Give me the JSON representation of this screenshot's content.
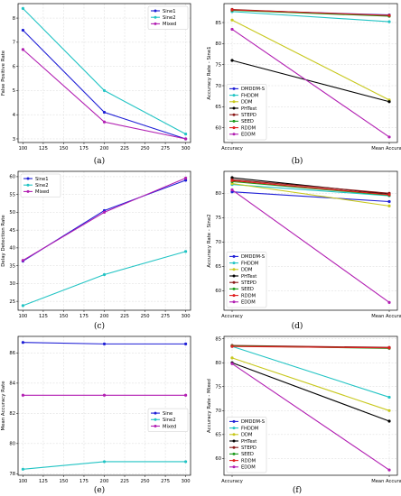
{
  "figure": {
    "panel_labels": [
      "(a)",
      "(b)",
      "(c)",
      "(d)",
      "(e)",
      "(f)"
    ]
  },
  "chart_data": [
    {
      "panel": "(a)",
      "type": "line",
      "xlabel": "",
      "ylabel": "False Positive Rate",
      "x": [
        100,
        200,
        300
      ],
      "xticks": [
        "100",
        "125",
        "150",
        "175",
        "200",
        "225",
        "250",
        "275",
        "300"
      ],
      "yticks": [
        "3",
        "4",
        "5",
        "6",
        "7",
        "8"
      ],
      "xlim": [
        94,
        306
      ],
      "ylim": [
        2.85,
        8.6
      ],
      "grid": true,
      "legend": "top-right",
      "series": [
        {
          "name": "Sine1",
          "color": "#1f1fd6",
          "values": [
            7.5,
            4.1,
            3.0
          ]
        },
        {
          "name": "Sine2",
          "color": "#22c4c4",
          "values": [
            8.4,
            5.0,
            3.2
          ]
        },
        {
          "name": "Mixed",
          "color": "#b21fb2",
          "values": [
            6.7,
            3.7,
            3.0
          ]
        }
      ]
    },
    {
      "panel": "(b)",
      "type": "line",
      "xlabel": "",
      "ylabel": "Accuracy Rate - Sine1",
      "categories": [
        "Accuracy",
        "Mean Accuracy"
      ],
      "xticks": [
        "Accuracy",
        "Mean Accuracy"
      ],
      "yticks": [
        "60",
        "65",
        "70",
        "75",
        "80",
        "85"
      ],
      "ylim": [
        56.5,
        89.5
      ],
      "grid": true,
      "legend": "bottom-left",
      "series": [
        {
          "name": "DMDDM-S",
          "color": "#1f1fd6",
          "values": [
            88.0,
            86.8
          ]
        },
        {
          "name": "FHDDM",
          "color": "#22c4c4",
          "values": [
            87.6,
            85.2
          ]
        },
        {
          "name": "DDM",
          "color": "#c8c81e",
          "values": [
            85.6,
            66.6
          ]
        },
        {
          "name": "PHTest",
          "color": "#000000",
          "values": [
            76.0,
            66.2
          ]
        },
        {
          "name": "STEPD",
          "color": "#8b1a1a",
          "values": [
            88.1,
            86.6
          ]
        },
        {
          "name": "SEED",
          "color": "#1a9a1a",
          "values": [
            87.9,
            86.5
          ]
        },
        {
          "name": "RDDM",
          "color": "#e01f1f",
          "values": [
            88.0,
            86.7
          ]
        },
        {
          "name": "EDDM",
          "color": "#b21fb2",
          "values": [
            83.4,
            57.8
          ]
        }
      ]
    },
    {
      "panel": "(c)",
      "type": "line",
      "xlabel": "",
      "ylabel": "Delay Detection Rate",
      "x": [
        100,
        200,
        300
      ],
      "xticks": [
        "100",
        "125",
        "150",
        "175",
        "200",
        "225",
        "250",
        "275",
        "300"
      ],
      "yticks": [
        "25",
        "30",
        "35",
        "40",
        "45",
        "50",
        "55",
        "60"
      ],
      "xlim": [
        94,
        306
      ],
      "ylim": [
        22.5,
        61.5
      ],
      "grid": true,
      "legend": "top-left",
      "series": [
        {
          "name": "Sine1",
          "color": "#1f1fd6",
          "values": [
            36.3,
            50.5,
            59.0
          ]
        },
        {
          "name": "Sine2",
          "color": "#22c4c4",
          "values": [
            23.8,
            32.5,
            39.0
          ]
        },
        {
          "name": "Mixed",
          "color": "#b21fb2",
          "values": [
            36.5,
            50.0,
            59.6
          ]
        }
      ]
    },
    {
      "panel": "(d)",
      "type": "line",
      "xlabel": "",
      "ylabel": "Accuracy Rate - Sine2",
      "categories": [
        "Accuracy",
        "Mean Accuracy"
      ],
      "xticks": [
        "Accuracy",
        "Mean Accuracy"
      ],
      "yticks": [
        "60",
        "65",
        "70",
        "75",
        "80"
      ],
      "ylim": [
        56.0,
        84.5
      ],
      "grid": true,
      "legend": "bottom-left",
      "series": [
        {
          "name": "DMDDM-S",
          "color": "#1f1fd6",
          "values": [
            80.3,
            78.3
          ]
        },
        {
          "name": "FHDDM",
          "color": "#22c4c4",
          "values": [
            81.8,
            79.5
          ]
        },
        {
          "name": "DDM",
          "color": "#c8c81e",
          "values": [
            82.0,
            77.4
          ]
        },
        {
          "name": "PHTest",
          "color": "#000000",
          "values": [
            83.2,
            79.8
          ]
        },
        {
          "name": "STEPD",
          "color": "#8b1a1a",
          "values": [
            82.8,
            80.0
          ]
        },
        {
          "name": "SEED",
          "color": "#1a9a1a",
          "values": [
            82.4,
            79.6
          ]
        },
        {
          "name": "RDDM",
          "color": "#e01f1f",
          "values": [
            82.6,
            79.7
          ]
        },
        {
          "name": "EDDM",
          "color": "#b21fb2",
          "values": [
            80.7,
            57.6
          ]
        }
      ]
    },
    {
      "panel": "(e)",
      "type": "line",
      "xlabel": "",
      "ylabel": "Mean Accuracy Rate",
      "x": [
        100,
        200,
        300
      ],
      "xticks": [
        "100",
        "125",
        "150",
        "175",
        "200",
        "225",
        "250",
        "275",
        "300"
      ],
      "yticks": [
        "78",
        "80",
        "82",
        "84",
        "86"
      ],
      "xlim": [
        94,
        306
      ],
      "ylim": [
        77.9,
        87.1
      ],
      "grid": true,
      "legend": "center-right",
      "series": [
        {
          "name": "Sine",
          "color": "#1f1fd6",
          "values": [
            86.7,
            86.6,
            86.6
          ]
        },
        {
          "name": "Sine2",
          "color": "#22c4c4",
          "values": [
            78.3,
            78.8,
            78.8
          ]
        },
        {
          "name": "Mixed",
          "color": "#b21fb2",
          "values": [
            83.2,
            83.2,
            83.2
          ]
        }
      ]
    },
    {
      "panel": "(f)",
      "type": "line",
      "xlabel": "",
      "ylabel": "Accuracy Rate - Mixed",
      "categories": [
        "Accuracy",
        "Mean Accuracy"
      ],
      "xticks": [
        "Accuracy",
        "Mean Accuracy"
      ],
      "yticks": [
        "60",
        "65",
        "70",
        "75",
        "80",
        "85"
      ],
      "ylim": [
        56.5,
        85.5
      ],
      "grid": true,
      "legend": "bottom-left",
      "series": [
        {
          "name": "DMDDM-S",
          "color": "#1f1fd6",
          "values": [
            83.5,
            83.1
          ]
        },
        {
          "name": "FHDDM",
          "color": "#22c4c4",
          "values": [
            83.4,
            72.8
          ]
        },
        {
          "name": "DDM",
          "color": "#c8c81e",
          "values": [
            81.0,
            70.0
          ]
        },
        {
          "name": "PHTest",
          "color": "#000000",
          "values": [
            80.0,
            67.8
          ]
        },
        {
          "name": "STEPD",
          "color": "#8b1a1a",
          "values": [
            83.6,
            83.2
          ]
        },
        {
          "name": "SEED",
          "color": "#1a9a1a",
          "values": [
            83.5,
            83.0
          ]
        },
        {
          "name": "RDDM",
          "color": "#e01f1f",
          "values": [
            83.4,
            83.1
          ]
        },
        {
          "name": "EDDM",
          "color": "#b21fb2",
          "values": [
            79.8,
            57.6
          ]
        }
      ]
    }
  ]
}
